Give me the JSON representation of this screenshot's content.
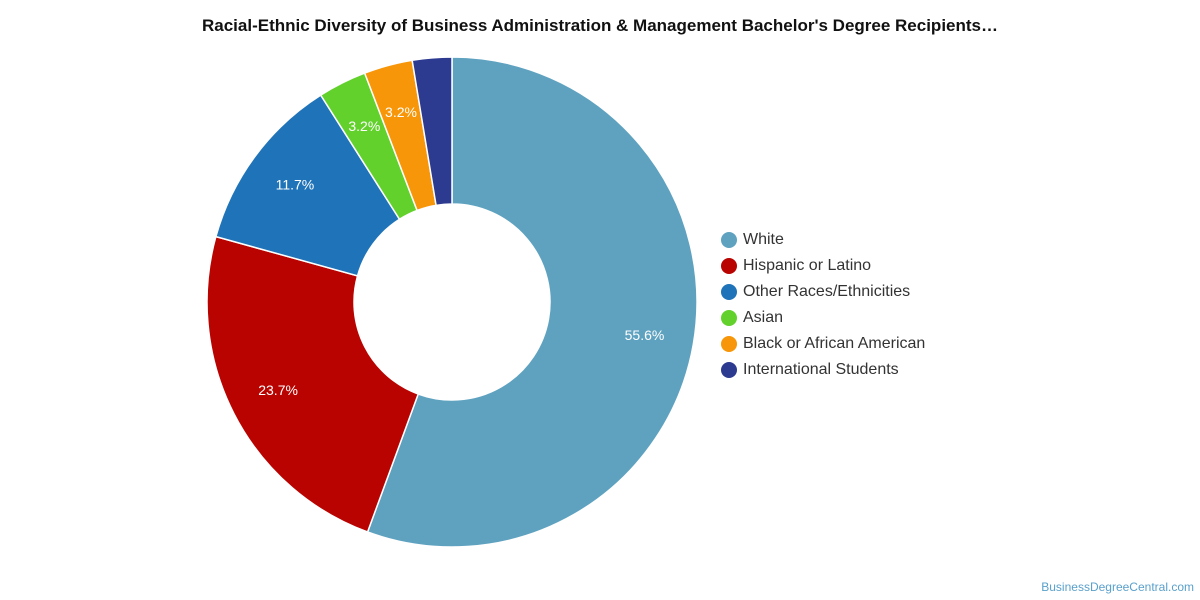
{
  "chart_data": {
    "type": "pie",
    "title": "Racial-Ethnic Diversity of Business Administration & Management Bachelor's Degree Recipients…",
    "donut": true,
    "legend_position": "right",
    "categories": [
      "White",
      "Hispanic or Latino",
      "Other Races/Ethnicities",
      "Asian",
      "Black or African American",
      "International Students"
    ],
    "values": [
      55.6,
      23.7,
      11.7,
      3.2,
      3.2,
      2.6
    ],
    "labels": [
      "55.6%",
      "23.7%",
      "11.7%",
      "3.2%",
      "3.2%",
      ""
    ],
    "colors": [
      "#5ea2c0",
      "#b80300",
      "#1f73b8",
      "#62d12c",
      "#f79608",
      "#2c3a90"
    ]
  },
  "watermark": "BusinessDegreeCentral.com"
}
